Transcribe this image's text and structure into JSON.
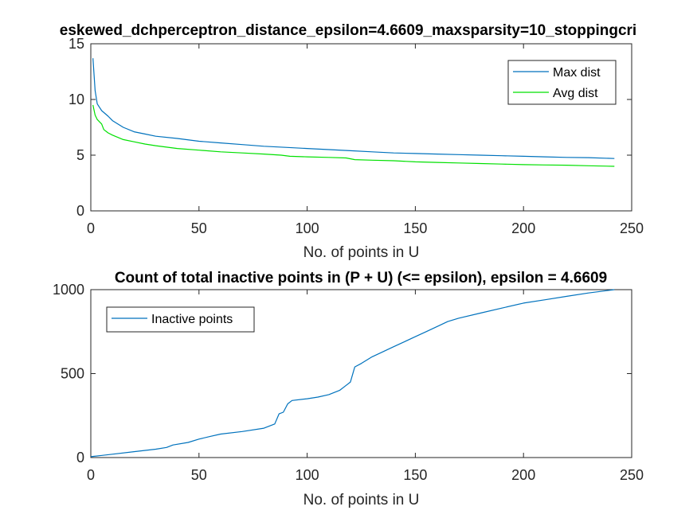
{
  "chart_data": [
    {
      "type": "line",
      "title": "eskewed_dchperceptron_distance_epsilon=4.6609_maxsparsity=10_stoppingcri",
      "xlabel": "No. of points in U",
      "ylabel": "",
      "xlim": [
        0,
        250
      ],
      "ylim": [
        0,
        15
      ],
      "xticks": [
        "0",
        "50",
        "100",
        "150",
        "200",
        "250"
      ],
      "yticks": [
        "0",
        "5",
        "10",
        "15"
      ],
      "legend_position": "top-right",
      "grid": false,
      "series": [
        {
          "name": "Max dist",
          "color": "#0072BD",
          "x": [
            1,
            2,
            3,
            5,
            8,
            10,
            15,
            20,
            25,
            30,
            40,
            50,
            60,
            70,
            80,
            90,
            100,
            110,
            120,
            130,
            140,
            150,
            160,
            170,
            180,
            190,
            200,
            210,
            220,
            230,
            242
          ],
          "y": [
            13.7,
            10.8,
            9.6,
            9.0,
            8.5,
            8.1,
            7.5,
            7.1,
            6.9,
            6.7,
            6.5,
            6.25,
            6.1,
            5.95,
            5.8,
            5.7,
            5.6,
            5.5,
            5.4,
            5.3,
            5.2,
            5.15,
            5.1,
            5.05,
            5.0,
            4.95,
            4.9,
            4.85,
            4.8,
            4.78,
            4.7
          ]
        },
        {
          "name": "Avg dist",
          "color": "#00E000",
          "x": [
            1,
            2,
            3,
            5,
            6,
            8,
            10,
            15,
            20,
            25,
            30,
            40,
            50,
            60,
            70,
            80,
            88,
            92,
            100,
            110,
            118,
            122,
            130,
            140,
            150,
            160,
            170,
            180,
            190,
            200,
            210,
            220,
            230,
            242
          ],
          "y": [
            9.5,
            8.6,
            8.2,
            7.8,
            7.3,
            7.0,
            6.8,
            6.4,
            6.2,
            6.0,
            5.85,
            5.6,
            5.45,
            5.3,
            5.2,
            5.1,
            5.0,
            4.9,
            4.85,
            4.8,
            4.75,
            4.6,
            4.55,
            4.5,
            4.4,
            4.35,
            4.3,
            4.25,
            4.2,
            4.15,
            4.12,
            4.1,
            4.05,
            4.0
          ]
        }
      ]
    },
    {
      "type": "line",
      "title": "Count of total inactive points in (P + U) (<= epsilon), epsilon = 4.6609",
      "xlabel": "No. of points in U",
      "ylabel": "",
      "xlim": [
        0,
        250
      ],
      "ylim": [
        0,
        1000
      ],
      "xticks": [
        "0",
        "50",
        "100",
        "150",
        "200",
        "250"
      ],
      "yticks": [
        "0",
        "500",
        "1000"
      ],
      "legend_position": "top-left",
      "grid": false,
      "series": [
        {
          "name": "Inactive points",
          "color": "#0072BD",
          "x": [
            0,
            10,
            20,
            30,
            35,
            38,
            45,
            50,
            55,
            60,
            70,
            80,
            85,
            87,
            89,
            91,
            93,
            100,
            105,
            110,
            115,
            118,
            120,
            122,
            125,
            130,
            135,
            140,
            145,
            150,
            155,
            160,
            165,
            170,
            180,
            190,
            200,
            210,
            220,
            230,
            242
          ],
          "y": [
            5,
            20,
            35,
            50,
            60,
            75,
            90,
            110,
            125,
            140,
            155,
            175,
            200,
            260,
            270,
            320,
            340,
            350,
            360,
            375,
            400,
            430,
            450,
            540,
            560,
            600,
            630,
            660,
            690,
            720,
            750,
            780,
            810,
            830,
            860,
            890,
            920,
            940,
            960,
            980,
            1000
          ]
        }
      ]
    }
  ]
}
